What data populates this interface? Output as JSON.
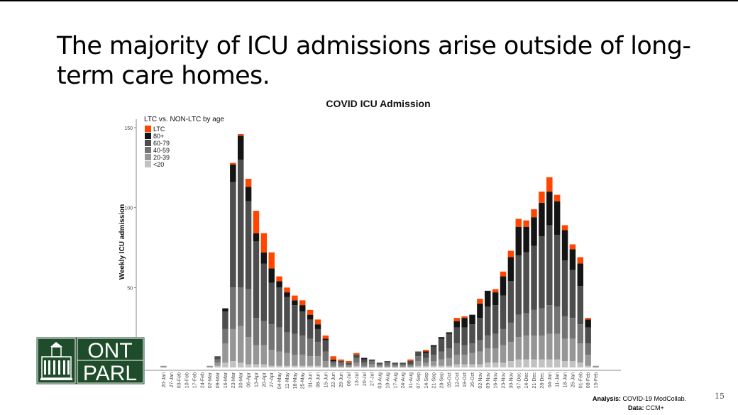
{
  "slide": {
    "title": "The majority of ICU admissions arise outside of long-term care homes.",
    "page_number": "15",
    "analysis_label": "Analysis:",
    "analysis_value": "COVID-19 ModCollab.",
    "data_label": "Data:",
    "data_value": "CCM+"
  },
  "logo": {
    "line1": "ONT",
    "line2": "PARL"
  },
  "colors": {
    "LTC": "#ff4500",
    "80+": "#141414",
    "60-79": "#4d4d4d",
    "40-59": "#737373",
    "20-39": "#969696",
    "<20": "#c2c2c2"
  },
  "chart_data": {
    "type": "bar",
    "stacked": true,
    "title": "COVID ICU Admission",
    "xlabel": "",
    "ylabel": "Weekly ICU admission",
    "legend_title": "LTC vs. NON-LTC by age",
    "legend_position": "top-left",
    "ylim": [
      0,
      150
    ],
    "yticks": [
      50,
      100,
      150
    ],
    "grid": false,
    "categories": [
      "20-Jan",
      "27-Jan",
      "03-Feb",
      "10-Feb",
      "17-Feb",
      "24-Feb",
      "02-Mar",
      "09-Mar",
      "16-Mar",
      "23-Mar",
      "30-Mar",
      "06-Apr",
      "13-Apr",
      "20-Apr",
      "27-Apr",
      "04-May",
      "11-May",
      "18-May",
      "25-May",
      "01-Jun",
      "08-Jun",
      "15-Jun",
      "22-Jun",
      "29-Jun",
      "06-Jul",
      "13-Jul",
      "20-Jul",
      "27-Jul",
      "03-Aug",
      "10-Aug",
      "17-Aug",
      "24-Aug",
      "31-Aug",
      "07-Sep",
      "14-Sep",
      "21-Sep",
      "28-Sep",
      "05-Oct",
      "12-Oct",
      "19-Oct",
      "26-Oct",
      "02-Nov",
      "09-Nov",
      "16-Nov",
      "23-Nov",
      "30-Nov",
      "07-Dec",
      "14-Dec",
      "21-Dec",
      "28-Dec",
      "04-Jan",
      "11-Jan",
      "18-Jan",
      "25-Jan",
      "01-Feb",
      "08-Feb",
      "15-Feb"
    ],
    "series": [
      {
        "name": "<20",
        "values": [
          0,
          0,
          0,
          0,
          0,
          0,
          0,
          1,
          3,
          4,
          3,
          2,
          2,
          2,
          1,
          1,
          1,
          1,
          1,
          1,
          1,
          0,
          0,
          0,
          0,
          1,
          0,
          0,
          0,
          0,
          0,
          0,
          0,
          1,
          1,
          1,
          1,
          1,
          2,
          2,
          2,
          2,
          3,
          3,
          3,
          4,
          5,
          5,
          5,
          5,
          5,
          5,
          4,
          4,
          3,
          1,
          0
        ]
      },
      {
        "name": "20-39",
        "values": [
          1,
          0,
          0,
          0,
          0,
          0,
          1,
          2,
          12,
          20,
          23,
          17,
          12,
          12,
          10,
          9,
          8,
          7,
          7,
          6,
          6,
          4,
          1,
          1,
          1,
          2,
          1,
          2,
          1,
          1,
          1,
          1,
          1,
          3,
          2,
          3,
          4,
          5,
          6,
          6,
          7,
          8,
          9,
          9,
          11,
          12,
          14,
          15,
          15,
          15,
          16,
          16,
          14,
          14,
          12,
          7,
          1
        ]
      },
      {
        "name": "40-59",
        "values": [
          0,
          0,
          0,
          0,
          0,
          0,
          0,
          2,
          9,
          26,
          24,
          30,
          17,
          15,
          16,
          15,
          13,
          13,
          12,
          11,
          9,
          6,
          2,
          2,
          1,
          3,
          2,
          2,
          1,
          2,
          1,
          1,
          1,
          3,
          3,
          4,
          5,
          6,
          7,
          6,
          6,
          7,
          8,
          9,
          10,
          12,
          14,
          14,
          16,
          17,
          18,
          17,
          14,
          13,
          12,
          7,
          0
        ]
      },
      {
        "name": "60-79",
        "values": [
          0,
          0,
          0,
          0,
          0,
          0,
          0,
          2,
          11,
          66,
          80,
          55,
          48,
          36,
          26,
          25,
          22,
          18,
          15,
          12,
          8,
          7,
          1,
          1,
          1,
          2,
          2,
          1,
          1,
          1,
          1,
          1,
          2,
          3,
          3,
          5,
          8,
          9,
          10,
          11,
          12,
          14,
          18,
          18,
          21,
          26,
          37,
          38,
          40,
          45,
          50,
          45,
          35,
          30,
          24,
          10,
          0
        ]
      },
      {
        "name": "80+",
        "values": [
          0,
          0,
          0,
          0,
          0,
          0,
          0,
          0,
          2,
          11,
          15,
          9,
          5,
          7,
          9,
          4,
          3,
          3,
          4,
          3,
          3,
          1,
          1,
          0,
          0,
          0,
          1,
          0,
          0,
          0,
          0,
          0,
          0,
          0,
          1,
          1,
          1,
          1,
          4,
          6,
          6,
          9,
          10,
          8,
          12,
          15,
          18,
          16,
          18,
          21,
          21,
          21,
          19,
          13,
          14,
          5,
          0
        ]
      },
      {
        "name": "LTC",
        "values": [
          0,
          0,
          0,
          0,
          0,
          0,
          0,
          0,
          0,
          1,
          1,
          5,
          14,
          12,
          10,
          3,
          3,
          3,
          3,
          3,
          3,
          2,
          2,
          1,
          1,
          1,
          0,
          0,
          0,
          0,
          0,
          0,
          1,
          0,
          1,
          0,
          0,
          0,
          2,
          1,
          0,
          3,
          0,
          2,
          3,
          4,
          5,
          4,
          5,
          7,
          9,
          4,
          3,
          3,
          4,
          1,
          0
        ]
      }
    ]
  }
}
